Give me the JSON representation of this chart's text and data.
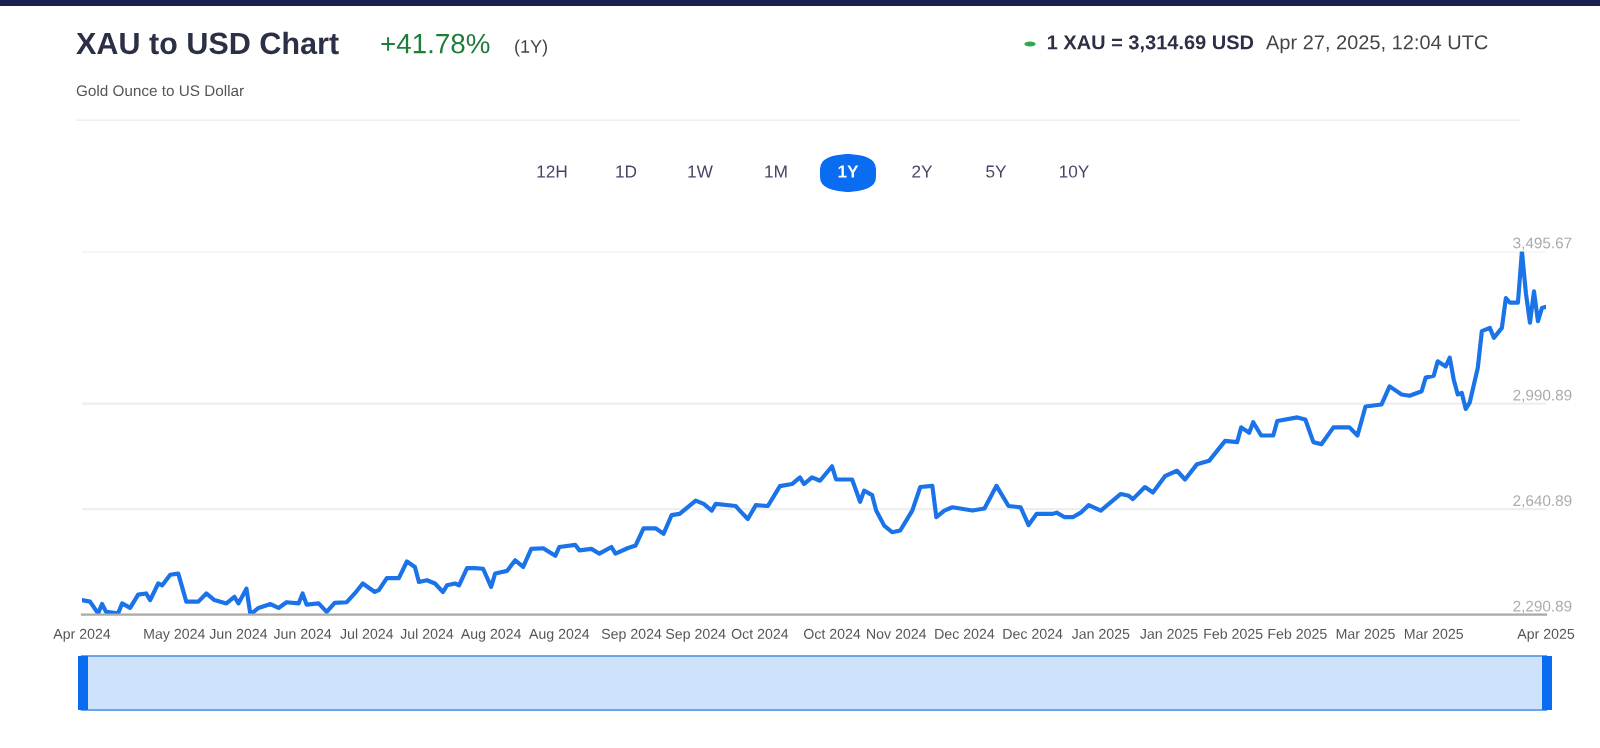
{
  "chart_data": {
    "type": "line",
    "title": "XAU to USD Chart",
    "subtitle": "Gold Ounce to US Dollar",
    "annotations": [
      "+41.78%",
      "(1Y)",
      "1 XAU = 3,314.69 USD",
      "Apr 27, 2025, 12:04 UTC",
      "12H",
      "1D",
      "1W",
      "1M",
      "1Y",
      "2Y",
      "5Y",
      "10Y"
    ],
    "x": [
      "2024-04-27",
      "2024-04-29",
      "2024-05-01",
      "2024-05-02",
      "2024-05-03",
      "2024-05-06",
      "2024-05-07",
      "2024-05-09",
      "2024-05-11",
      "2024-05-13",
      "2024-05-14",
      "2024-05-16",
      "2024-05-17",
      "2024-05-19",
      "2024-05-21",
      "2024-05-23",
      "2024-05-26",
      "2024-05-28",
      "2024-05-30",
      "2024-06-02",
      "2024-06-04",
      "2024-06-05",
      "2024-06-07",
      "2024-06-08",
      "2024-06-10",
      "2024-06-13",
      "2024-06-15",
      "2024-06-17",
      "2024-06-20",
      "2024-06-21",
      "2024-06-22",
      "2024-06-25",
      "2024-06-27",
      "2024-06-29",
      "2024-07-02",
      "2024-07-04",
      "2024-07-06",
      "2024-07-09",
      "2024-07-10",
      "2024-07-12",
      "2024-07-15",
      "2024-07-17",
      "2024-07-19",
      "2024-07-20",
      "2024-07-22",
      "2024-07-24",
      "2024-07-26",
      "2024-07-27",
      "2024-07-29",
      "2024-07-30",
      "2024-08-01",
      "2024-08-03",
      "2024-08-05",
      "2024-08-07",
      "2024-08-08",
      "2024-08-11",
      "2024-08-13",
      "2024-08-15",
      "2024-08-17",
      "2024-08-20",
      "2024-08-23",
      "2024-08-24",
      "2024-08-28",
      "2024-08-29",
      "2024-09-01",
      "2024-09-03",
      "2024-09-06",
      "2024-09-07",
      "2024-09-10",
      "2024-09-12",
      "2024-09-14",
      "2024-09-17",
      "2024-09-19",
      "2024-09-21",
      "2024-09-23",
      "2024-09-27",
      "2024-09-29",
      "2024-10-01",
      "2024-10-02",
      "2024-10-07",
      "2024-10-08",
      "2024-10-10",
      "2024-10-12",
      "2024-10-15",
      "2024-10-18",
      "2024-10-21",
      "2024-10-23",
      "2024-10-24",
      "2024-10-26",
      "2024-10-28",
      "2024-10-31",
      "2024-11-01",
      "2024-11-05",
      "2024-11-07",
      "2024-11-08",
      "2024-11-10",
      "2024-11-11",
      "2024-11-13",
      "2024-11-15",
      "2024-11-17",
      "2024-11-20",
      "2024-11-22",
      "2024-11-25",
      "2024-11-26",
      "2024-11-28",
      "2024-11-30",
      "2024-12-05",
      "2024-12-08",
      "2024-12-11",
      "2024-12-14",
      "2024-12-17",
      "2024-12-19",
      "2024-12-21",
      "2024-12-25",
      "2024-12-26",
      "2024-12-28",
      "2024-12-30",
      "2025-01-01",
      "2025-01-03",
      "2025-01-06",
      "2025-01-11",
      "2025-01-13",
      "2025-01-14",
      "2025-01-17",
      "2025-01-19",
      "2025-01-22",
      "2025-01-25",
      "2025-01-27",
      "2025-01-30",
      "2025-02-02",
      "2025-02-06",
      "2025-02-09",
      "2025-02-10",
      "2025-02-12",
      "2025-02-13",
      "2025-02-15",
      "2025-02-18",
      "2025-02-19",
      "2025-02-24",
      "2025-02-26",
      "2025-02-28",
      "2025-03-02",
      "2025-03-05",
      "2025-03-09",
      "2025-03-11",
      "2025-03-13",
      "2025-03-17",
      "2025-03-19",
      "2025-03-22",
      "2025-03-24",
      "2025-03-27",
      "2025-03-28",
      "2025-03-30",
      "2025-03-31",
      "2025-04-02",
      "2025-04-03",
      "2025-04-04",
      "2025-04-05",
      "2025-04-06",
      "2025-04-07",
      "2025-04-08",
      "2025-04-10",
      "2025-04-11",
      "2025-04-13",
      "2025-04-14",
      "2025-04-16",
      "2025-04-17",
      "2025-04-18",
      "2025-04-20",
      "2025-04-21",
      "2025-04-22",
      "2025-04-23",
      "2025-04-24",
      "2025-04-25",
      "2025-04-26",
      "2025-04-27"
    ],
    "series": [
      {
        "color": "#1a73e8",
        "values": [
          2339,
          2334,
          2295,
          2326,
          2300,
          2295,
          2328,
          2313,
          2357,
          2361,
          2339,
          2394,
          2388,
          2423,
          2427,
          2334,
          2334,
          2361,
          2339,
          2328,
          2350,
          2328,
          2377,
          2291,
          2313,
          2326,
          2313,
          2332,
          2328,
          2361,
          2324,
          2328,
          2300,
          2330,
          2332,
          2361,
          2394,
          2366,
          2372,
          2412,
          2412,
          2467,
          2449,
          2399,
          2405,
          2394,
          2366,
          2388,
          2394,
          2388,
          2445,
          2445,
          2443,
          2383,
          2427,
          2436,
          2471,
          2449,
          2509,
          2511,
          2486,
          2515,
          2522,
          2504,
          2509,
          2493,
          2515,
          2493,
          2511,
          2520,
          2577,
          2577,
          2559,
          2621,
          2625,
          2669,
          2658,
          2636,
          2658,
          2651,
          2636,
          2608,
          2654,
          2651,
          2717,
          2724,
          2746,
          2724,
          2746,
          2735,
          2783,
          2739,
          2739,
          2665,
          2702,
          2687,
          2636,
          2586,
          2564,
          2570,
          2636,
          2714,
          2718,
          2614,
          2636,
          2647,
          2636,
          2643,
          2718,
          2651,
          2647,
          2588,
          2625,
          2625,
          2629,
          2614,
          2614,
          2629,
          2654,
          2636,
          2691,
          2685,
          2674,
          2714,
          2696,
          2750,
          2768,
          2739,
          2790,
          2801,
          2867,
          2863,
          2912,
          2894,
          2929,
          2885,
          2885,
          2933,
          2945,
          2938,
          2863,
          2856,
          2912,
          2912,
          2885,
          2981,
          2988,
          3048,
          3021,
          3017,
          3032,
          3077,
          3083,
          3131,
          3114,
          3143,
          3070,
          3021,
          3026,
          2973,
          2995,
          3110,
          3231,
          3242,
          3209,
          3242,
          3341,
          3326,
          3326,
          3495.67,
          3356,
          3259,
          3363,
          3264,
          3308,
          3312
        ]
      }
    ],
    "xlim": [
      "2024-04-27",
      "2025-04-27"
    ],
    "xticks": [
      {
        "value": "2024-04-27",
        "label": "Apr 2024"
      },
      {
        "value": "2024-05-20",
        "label": "May 2024"
      },
      {
        "value": "2024-06-05",
        "label": "Jun 2024"
      },
      {
        "value": "2024-06-21",
        "label": "Jun 2024"
      },
      {
        "value": "2024-07-07",
        "label": "Jul 2024"
      },
      {
        "value": "2024-07-22",
        "label": "Jul 2024"
      },
      {
        "value": "2024-08-07",
        "label": "Aug 2024"
      },
      {
        "value": "2024-08-24",
        "label": "Aug 2024"
      },
      {
        "value": "2024-09-11",
        "label": "Sep 2024"
      },
      {
        "value": "2024-09-27",
        "label": "Sep 2024"
      },
      {
        "value": "2024-10-13",
        "label": "Oct 2024"
      },
      {
        "value": "2024-10-31",
        "label": "Oct 2024"
      },
      {
        "value": "2024-11-16",
        "label": "Nov 2024"
      },
      {
        "value": "2024-12-03",
        "label": "Dec 2024"
      },
      {
        "value": "2024-12-20",
        "label": "Dec 2024"
      },
      {
        "value": "2025-01-06",
        "label": "Jan 2025"
      },
      {
        "value": "2025-01-23",
        "label": "Jan 2025"
      },
      {
        "value": "2025-02-08",
        "label": "Feb 2025"
      },
      {
        "value": "2025-02-24",
        "label": "Feb 2025"
      },
      {
        "value": "2025-03-13",
        "label": "Mar 2025"
      },
      {
        "value": "2025-03-30",
        "label": "Mar 2025"
      },
      {
        "value": "2025-04-27",
        "label": "Apr 2025"
      }
    ],
    "ylim": [
      2290.89,
      3495.67
    ],
    "yticks": [
      {
        "value": 2290.89,
        "label": "2,290.89"
      },
      {
        "value": 2640.89,
        "label": "2,640.89"
      },
      {
        "value": 2990.89,
        "label": "2,990.89"
      },
      {
        "value": 3495.67,
        "label": "3,495.67"
      }
    ],
    "grid": "y",
    "legend": false,
    "marker": "none",
    "line_style": "solid"
  }
}
